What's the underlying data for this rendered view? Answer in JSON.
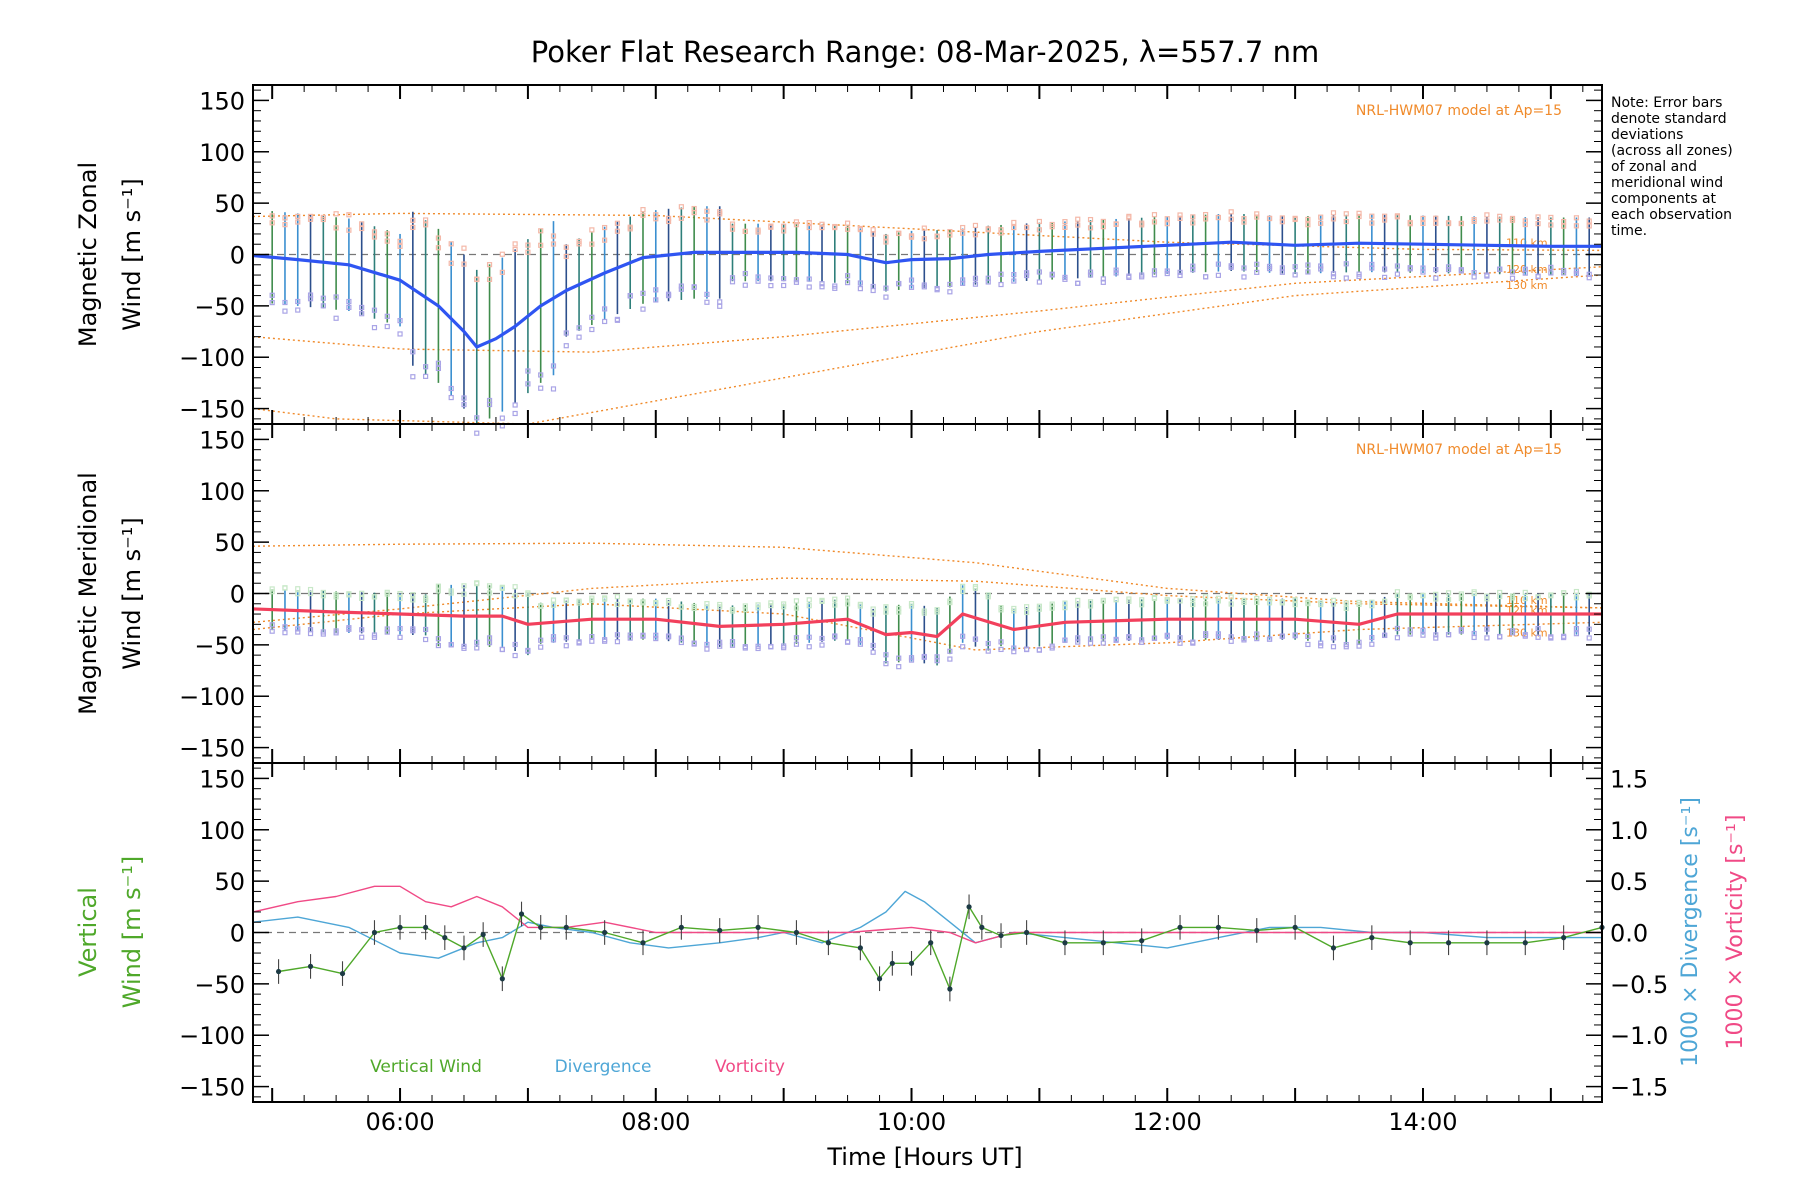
{
  "title": "Poker Flat Research Range: 08-Mar-2025, λ=557.7 nm",
  "note": "Note: Error bars\ndenote standard\ndeviations\n(across all zones)\nof zonal and\nmeridional wind\ncomponents at\neach observation\ntime.",
  "x_axis": {
    "label": "Time [Hours UT]",
    "range_hours": [
      4.85,
      15.4
    ],
    "ticks": [
      {
        "h": 6,
        "label": "06:00"
      },
      {
        "h": 8,
        "label": "08:00"
      },
      {
        "h": 10,
        "label": "10:00"
      },
      {
        "h": 12,
        "label": "12:00"
      },
      {
        "h": 14,
        "label": "14:00"
      }
    ]
  },
  "colors": {
    "zonal": "#2f55f2",
    "meridional": "#f2405c",
    "model": "#f08a2a",
    "vertical": "#4fa82a",
    "divergence": "#4ea6d6",
    "vorticity": "#f04a86",
    "scatter_upper": "#f4b8a8",
    "scatter_lower": "#a9a4e6"
  },
  "chart_data": [
    {
      "type": "line",
      "id": "zonal",
      "ylabel": "Magnetic Zonal Wind [m s⁻¹]",
      "ylim": [
        -165,
        165
      ],
      "yticks": [
        "150",
        "100",
        "50",
        "0",
        "−50",
        "−100",
        "−150"
      ],
      "model_label": "NRL-HWM07 model at Ap=15",
      "model_curves": [
        {
          "label": "110 km",
          "x": [
            4.85,
            6,
            8,
            10,
            12,
            14,
            15.4
          ],
          "y": [
            37,
            40,
            38,
            25,
            12,
            5,
            4
          ]
        },
        {
          "label": "120 km",
          "x": [
            4.85,
            6,
            7.5,
            9,
            11,
            13,
            15.4
          ],
          "y": [
            -80,
            -92,
            -95,
            -80,
            -55,
            -28,
            -12
          ]
        },
        {
          "label": "130 km",
          "x": [
            4.85,
            5.5,
            7,
            9,
            11,
            13,
            15.4
          ],
          "y": [
            -150,
            -160,
            -165,
            -120,
            -75,
            -40,
            -20
          ]
        }
      ],
      "series": [
        {
          "x": [
            4.85,
            5.2,
            5.6,
            6.0,
            6.3,
            6.5,
            6.6,
            6.75,
            6.9,
            7.1,
            7.3,
            7.6,
            7.9,
            8.3,
            8.7,
            9.1,
            9.5,
            9.8,
            10.0,
            10.3,
            10.6,
            11.0,
            11.5,
            12.0,
            12.5,
            13.0,
            13.5,
            14.0,
            14.5,
            15.0,
            15.4
          ],
          "y": [
            -1,
            -5,
            -10,
            -25,
            -50,
            -75,
            -90,
            -82,
            -70,
            -50,
            -35,
            -18,
            -3,
            2,
            2,
            2,
            0,
            -8,
            -5,
            -4,
            0,
            3,
            6,
            9,
            12,
            9,
            11,
            10,
            9,
            8,
            8
          ]
        }
      ]
    },
    {
      "type": "line",
      "id": "meridional",
      "ylabel": "Magnetic Meridional Wind [m s⁻¹]",
      "ylim": [
        -165,
        165
      ],
      "yticks": [
        "150",
        "100",
        "50",
        "0",
        "−50",
        "−100",
        "−150"
      ],
      "model_label": "NRL-HWM07 model at Ap=15",
      "model_curves": [
        {
          "label": "110 km",
          "x": [
            4.85,
            6,
            7.5,
            9,
            10.5,
            12,
            13.5,
            15.4
          ],
          "y": [
            46,
            48,
            49,
            45,
            30,
            5,
            -8,
            -14
          ]
        },
        {
          "label": "120 km",
          "x": [
            4.85,
            6,
            7.5,
            9,
            10.5,
            12,
            13.5,
            15.4
          ],
          "y": [
            -28,
            -15,
            5,
            15,
            12,
            -2,
            -10,
            -14
          ]
        },
        {
          "label": "130 km",
          "x": [
            4.85,
            6,
            7.5,
            9,
            10.5,
            12,
            13.5,
            15.4
          ],
          "y": [
            -35,
            -20,
            -10,
            -20,
            -55,
            -48,
            -35,
            -28
          ]
        }
      ],
      "series": [
        {
          "x": [
            4.85,
            5.5,
            6.0,
            6.5,
            6.8,
            7.0,
            7.5,
            8.0,
            8.5,
            9.0,
            9.5,
            9.8,
            10.0,
            10.2,
            10.4,
            10.8,
            11.2,
            12.0,
            13.0,
            13.5,
            13.8,
            14.5,
            15.4
          ],
          "y": [
            -15,
            -18,
            -20,
            -22,
            -22,
            -30,
            -25,
            -25,
            -32,
            -30,
            -25,
            -40,
            -38,
            -42,
            -20,
            -35,
            -28,
            -25,
            -25,
            -30,
            -20,
            -20,
            -20
          ]
        }
      ]
    },
    {
      "type": "line",
      "id": "vertical",
      "ylabel_left": "Vertical Wind [m s⁻¹]",
      "ylabel_right_div": "1000 × Divergence [s⁻¹]",
      "ylabel_right_vort": "1000 × Vorticity [s⁻¹]",
      "ylim": [
        -165,
        165
      ],
      "yticks": [
        "150",
        "100",
        "50",
        "0",
        "−50",
        "−100",
        "−150"
      ],
      "ylim_right": [
        -1.65,
        1.65
      ],
      "yticks_right": [
        "1.5",
        "1.0",
        "0.5",
        "0.0",
        "−0.5",
        "−1.0",
        "−1.5"
      ],
      "legend": [
        "Vertical Wind",
        "Divergence",
        "Vorticity"
      ],
      "series": [
        {
          "name": "Vertical Wind",
          "x": [
            5.05,
            5.3,
            5.55,
            5.8,
            6.0,
            6.2,
            6.35,
            6.5,
            6.65,
            6.8,
            6.95,
            7.1,
            7.3,
            7.6,
            7.9,
            8.2,
            8.5,
            8.8,
            9.1,
            9.35,
            9.6,
            9.75,
            9.85,
            10.0,
            10.15,
            10.3,
            10.45,
            10.55,
            10.7,
            10.9,
            11.2,
            11.5,
            11.8,
            12.1,
            12.4,
            12.7,
            13.0,
            13.3,
            13.6,
            13.9,
            14.2,
            14.5,
            14.8,
            15.1,
            15.4
          ],
          "y": [
            -38,
            -33,
            -40,
            0,
            5,
            5,
            -5,
            -15,
            -2,
            -45,
            18,
            5,
            5,
            0,
            -10,
            5,
            2,
            5,
            0,
            -10,
            -15,
            -45,
            -30,
            -30,
            -10,
            -55,
            25,
            5,
            -3,
            0,
            -10,
            -10,
            -8,
            5,
            5,
            2,
            5,
            -15,
            -5,
            -10,
            -10,
            -10,
            -10,
            -5,
            5
          ]
        },
        {
          "name": "Divergence",
          "x": [
            4.85,
            5.2,
            5.6,
            6.0,
            6.3,
            6.6,
            6.8,
            7.0,
            7.2,
            7.5,
            7.8,
            8.1,
            8.5,
            8.8,
            9.0,
            9.3,
            9.6,
            9.8,
            9.95,
            10.1,
            10.3,
            10.5,
            10.8,
            11.2,
            11.6,
            12.0,
            12.4,
            12.8,
            13.2,
            13.6,
            14.0,
            14.5,
            15.0,
            15.4
          ],
          "y": [
            0.1,
            0.15,
            0.05,
            -0.2,
            -0.25,
            -0.1,
            -0.05,
            0.1,
            0.05,
            0.0,
            -0.1,
            -0.15,
            -0.1,
            -0.05,
            0.0,
            -0.1,
            0.05,
            0.2,
            0.4,
            0.3,
            0.1,
            -0.1,
            0.0,
            -0.05,
            -0.1,
            -0.15,
            -0.05,
            0.05,
            0.05,
            0.0,
            0.0,
            -0.05,
            -0.05,
            -0.05
          ]
        },
        {
          "name": "Vorticity",
          "x": [
            4.85,
            5.2,
            5.5,
            5.8,
            6.0,
            6.2,
            6.4,
            6.6,
            6.8,
            7.0,
            7.3,
            7.6,
            8.0,
            8.5,
            9.0,
            9.5,
            10.0,
            10.3,
            10.5,
            10.8,
            11.2,
            12.0,
            12.5,
            13.0,
            13.5,
            14.0,
            14.5,
            15.0,
            15.4
          ],
          "y": [
            0.2,
            0.3,
            0.35,
            0.45,
            0.45,
            0.3,
            0.25,
            0.35,
            0.25,
            0.05,
            0.05,
            0.1,
            0.0,
            0.0,
            0.0,
            0.0,
            0.05,
            0.0,
            -0.1,
            0.0,
            0.0,
            0.0,
            0.0,
            0.0,
            0.0,
            0.0,
            0.0,
            0.0,
            0.0
          ]
        }
      ]
    }
  ]
}
